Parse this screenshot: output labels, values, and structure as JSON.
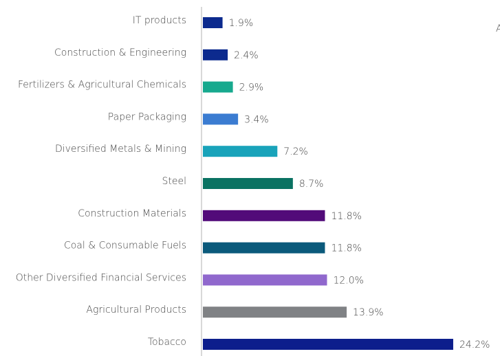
{
  "chart_data": {
    "type": "bar",
    "orientation": "horizontal",
    "categories": [
      "IT products",
      "Construction & Engineering",
      "Fertilizers & Agricultural Chemicals",
      "Paper Packaging",
      "Diversified Metals & Mining",
      "Steel",
      "Construction Materials",
      "Coal & Consumable Fuels",
      "Other Diversified Financial Services",
      "Agricultural Products",
      "Tobacco"
    ],
    "values": [
      1.9,
      2.4,
      2.9,
      3.4,
      7.2,
      8.7,
      11.8,
      11.8,
      12.0,
      13.9,
      24.2
    ],
    "value_labels": [
      "1.9%",
      "2.4%",
      "2.9%",
      "3.4%",
      "7.2%",
      "8.7%",
      "11.8%",
      "11.8%",
      "12.0%",
      "13.9%",
      "24.2%"
    ],
    "colors": [
      "#0c2a8e",
      "#0c2a8e",
      "#17a98e",
      "#3b7cd1",
      "#19a3ba",
      "#0a7262",
      "#520b79",
      "#0b5a7b",
      "#9068cd",
      "#808285",
      "#0d1e8c"
    ],
    "xlim": [
      0,
      25
    ],
    "annotation": "A"
  }
}
